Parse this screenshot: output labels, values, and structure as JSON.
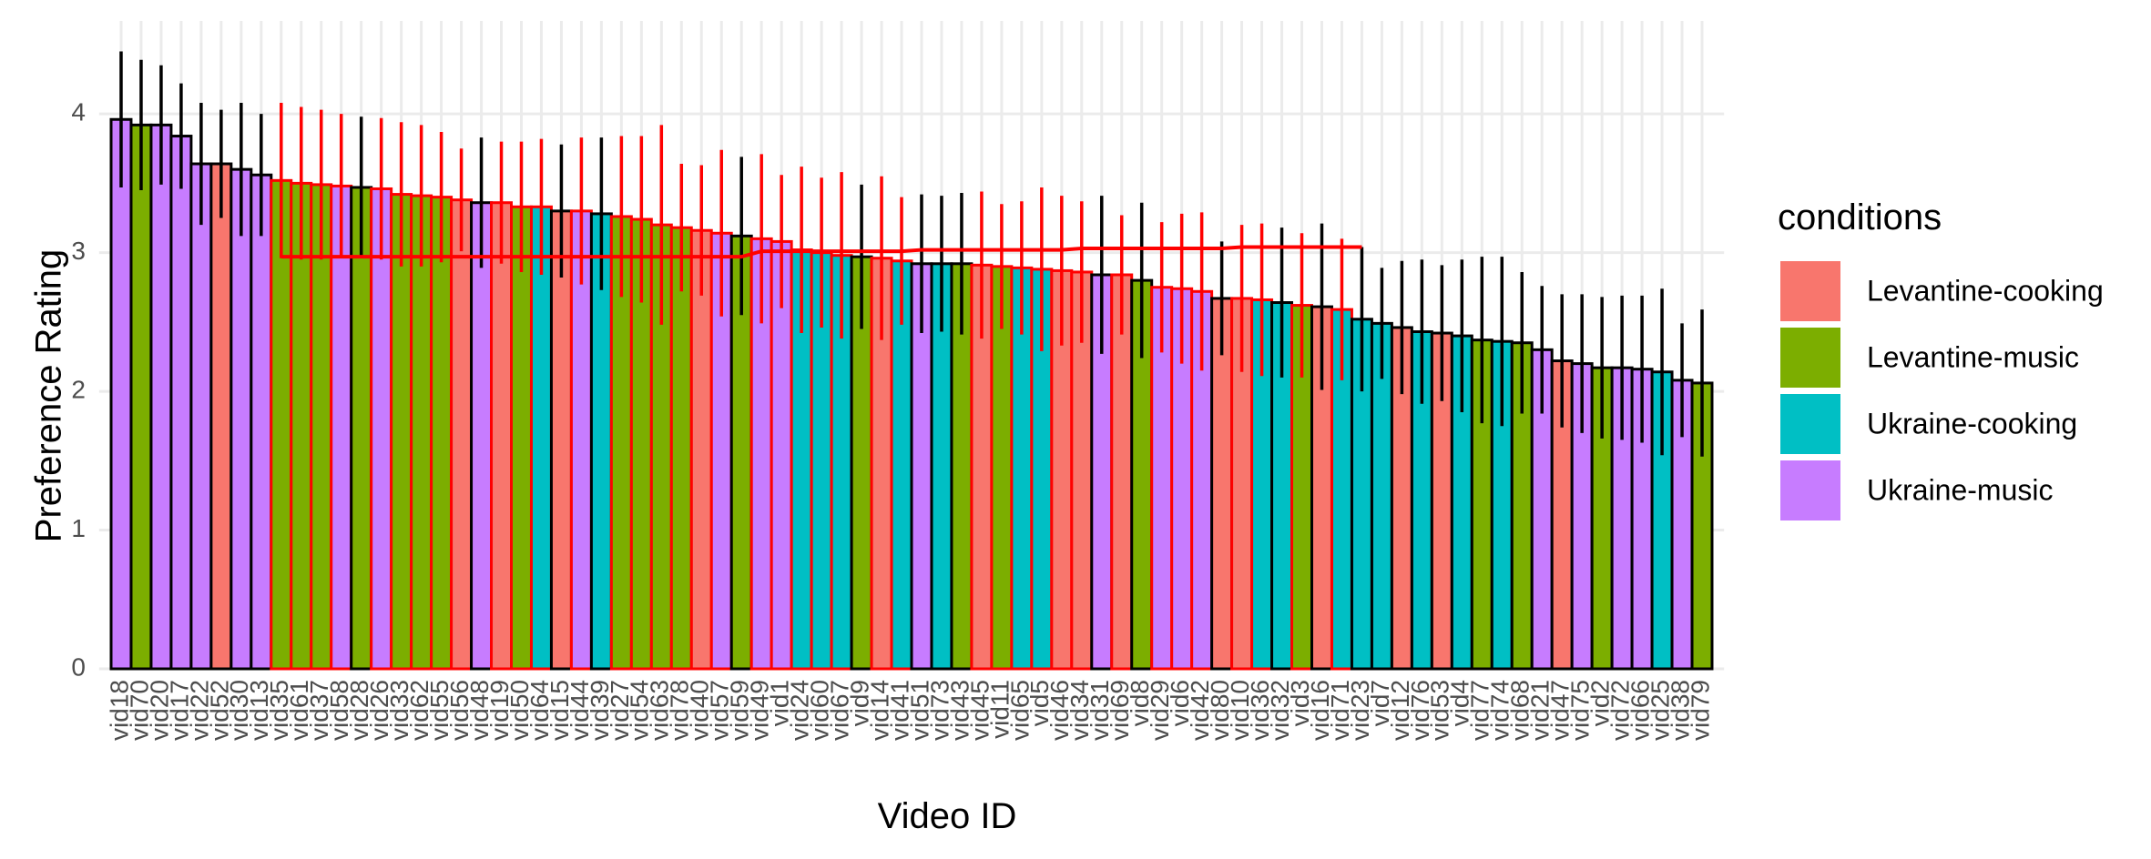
{
  "chart_data": {
    "type": "bar",
    "xlabel": "Video ID",
    "ylabel": "Preference Rating",
    "legend_title": "conditions",
    "legend": [
      {
        "name": "Levantine-cooking",
        "color": "#F8766D"
      },
      {
        "name": "Levantine-music",
        "color": "#7CAE00"
      },
      {
        "name": "Ukraine-cooking",
        "color": "#00BFC4"
      },
      {
        "name": "Ukraine-music",
        "color": "#C77CFF"
      }
    ],
    "categories": [
      "vid18",
      "vid70",
      "vid20",
      "vid17",
      "vid22",
      "vid52",
      "vid30",
      "vid13",
      "vid35",
      "vid61",
      "vid37",
      "vid58",
      "vid28",
      "vid26",
      "vid33",
      "vid62",
      "vid55",
      "vid56",
      "vid48",
      "vid19",
      "vid50",
      "vid64",
      "vid15",
      "vid44",
      "vid39",
      "vid27",
      "vid54",
      "vid63",
      "vid78",
      "vid40",
      "vid57",
      "vid59",
      "vid49",
      "vid1",
      "vid24",
      "vid60",
      "vid67",
      "vid9",
      "vid14",
      "vid41",
      "vid51",
      "vid73",
      "vid43",
      "vid45",
      "vid11",
      "vid65",
      "vid5",
      "vid46",
      "vid34",
      "vid31",
      "vid69",
      "vid8",
      "vid29",
      "vid6",
      "vid42",
      "vid80",
      "vid10",
      "vid36",
      "vid32",
      "vid3",
      "vid16",
      "vid71",
      "vid23",
      "vid7",
      "vid12",
      "vid76",
      "vid53",
      "vid4",
      "vid77",
      "vid74",
      "vid68",
      "vid21",
      "vid47",
      "vid75",
      "vid2",
      "vid72",
      "vid66",
      "vid25",
      "vid38",
      "vid79"
    ],
    "values": [
      3.96,
      3.92,
      3.92,
      3.84,
      3.64,
      3.64,
      3.6,
      3.56,
      3.52,
      3.5,
      3.49,
      3.48,
      3.47,
      3.46,
      3.42,
      3.41,
      3.4,
      3.38,
      3.36,
      3.36,
      3.33,
      3.33,
      3.3,
      3.3,
      3.28,
      3.26,
      3.24,
      3.2,
      3.18,
      3.16,
      3.14,
      3.12,
      3.1,
      3.08,
      3.02,
      3.0,
      2.98,
      2.97,
      2.96,
      2.94,
      2.92,
      2.92,
      2.92,
      2.91,
      2.9,
      2.89,
      2.88,
      2.87,
      2.86,
      2.84,
      2.84,
      2.8,
      2.75,
      2.74,
      2.72,
      2.67,
      2.67,
      2.66,
      2.64,
      2.62,
      2.61,
      2.59,
      2.52,
      2.49,
      2.46,
      2.43,
      2.42,
      2.4,
      2.37,
      2.36,
      2.35,
      2.3,
      2.22,
      2.2,
      2.17,
      2.17,
      2.16,
      2.14,
      2.08,
      2.06
    ],
    "errors": [
      0.49,
      0.47,
      0.43,
      0.38,
      0.44,
      0.39,
      0.48,
      0.44,
      0.56,
      0.55,
      0.54,
      0.52,
      0.51,
      0.51,
      0.52,
      0.51,
      0.47,
      0.37,
      0.47,
      0.44,
      0.47,
      0.49,
      0.48,
      0.53,
      0.55,
      0.58,
      0.6,
      0.72,
      0.46,
      0.47,
      0.6,
      0.57,
      0.61,
      0.48,
      0.6,
      0.54,
      0.6,
      0.52,
      0.59,
      0.46,
      0.5,
      0.49,
      0.51,
      0.53,
      0.45,
      0.48,
      0.59,
      0.54,
      0.51,
      0.57,
      0.43,
      0.56,
      0.47,
      0.54,
      0.57,
      0.41,
      0.53,
      0.55,
      0.54,
      0.52,
      0.6,
      0.51,
      0.52,
      0.4,
      0.48,
      0.52,
      0.49,
      0.55,
      0.6,
      0.61,
      0.51,
      0.46,
      0.48,
      0.5,
      0.51,
      0.52,
      0.53,
      0.6,
      0.41,
      0.53
    ],
    "groups": [
      3,
      1,
      3,
      3,
      3,
      0,
      3,
      3,
      1,
      1,
      1,
      3,
      1,
      3,
      1,
      1,
      1,
      0,
      3,
      0,
      1,
      2,
      0,
      3,
      2,
      1,
      1,
      1,
      1,
      0,
      3,
      1,
      3,
      3,
      2,
      2,
      2,
      1,
      0,
      2,
      3,
      2,
      1,
      0,
      1,
      2,
      2,
      0,
      0,
      3,
      0,
      1,
      3,
      3,
      3,
      0,
      0,
      2,
      2,
      1,
      0,
      2,
      2,
      2,
      0,
      2,
      0,
      2,
      1,
      2,
      1,
      3,
      0,
      3,
      1,
      3,
      3,
      2,
      3,
      1
    ],
    "highlighted": [
      false,
      false,
      false,
      false,
      false,
      false,
      false,
      false,
      true,
      true,
      true,
      true,
      false,
      true,
      true,
      true,
      true,
      true,
      false,
      true,
      true,
      true,
      false,
      true,
      false,
      true,
      true,
      true,
      true,
      true,
      true,
      false,
      true,
      true,
      true,
      true,
      true,
      false,
      true,
      true,
      false,
      false,
      false,
      true,
      true,
      true,
      true,
      true,
      true,
      false,
      true,
      false,
      true,
      true,
      true,
      false,
      true,
      true,
      false,
      true,
      false,
      true,
      false,
      false,
      false,
      false,
      false,
      false,
      false,
      false,
      false,
      false,
      false,
      false,
      false,
      false,
      false,
      false,
      false,
      false
    ],
    "trend_values": [
      null,
      null,
      null,
      null,
      null,
      null,
      null,
      null,
      2.97,
      2.97,
      2.97,
      2.97,
      2.97,
      2.97,
      2.97,
      2.97,
      2.97,
      2.97,
      2.97,
      2.97,
      2.97,
      2.97,
      2.97,
      2.97,
      2.97,
      2.97,
      2.97,
      2.97,
      2.97,
      2.97,
      2.97,
      2.97,
      3.01,
      3.01,
      3.01,
      3.01,
      3.01,
      3.01,
      3.01,
      3.01,
      3.02,
      3.02,
      3.02,
      3.02,
      3.02,
      3.02,
      3.02,
      3.02,
      3.03,
      3.03,
      3.03,
      3.03,
      3.03,
      3.03,
      3.03,
      3.03,
      3.04,
      3.04,
      3.04,
      3.04,
      3.04,
      3.04,
      3.04,
      null,
      null,
      null,
      null,
      null,
      null,
      null,
      null,
      null,
      null,
      null,
      null,
      null,
      null,
      null,
      null,
      null
    ],
    "highlight_color": "#FF0000",
    "ylim": [
      0,
      4.67
    ],
    "yticks": [
      0,
      1,
      2,
      3,
      4
    ],
    "grid": true
  }
}
